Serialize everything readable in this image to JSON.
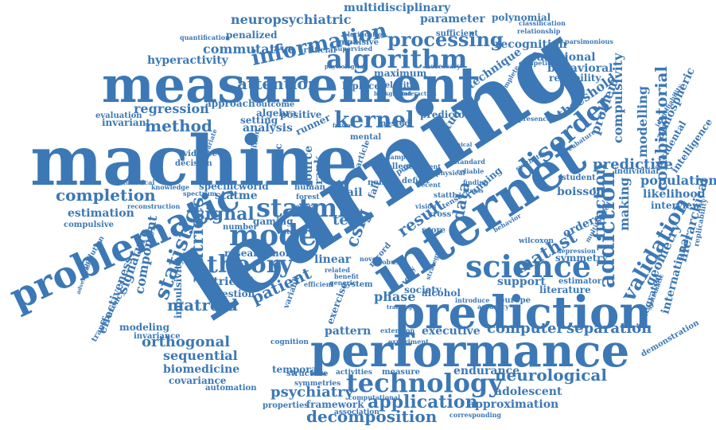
{
  "colors": {
    "text": "#3c78b5",
    "background": "#ffffff"
  },
  "words": {
    "w001": "learning",
    "w002": "machine",
    "w003": "measurement",
    "w004": "internet",
    "w005": "performance",
    "w006": "prediction",
    "w007": "problematic",
    "w008": "science",
    "w009": "algorithm",
    "w010": "model",
    "w011": "technology",
    "w012": "disorder",
    "w013": "addiction",
    "w014": "theory",
    "w015": "information",
    "w016": "statml",
    "w017": "kernel",
    "w018": "processing",
    "w019": "validation",
    "w020": "decomposition",
    "w021": "application",
    "w022": "mathst",
    "w023": "statistic",
    "w024": "matrices",
    "w025": "signal",
    "w026": "method",
    "w027": "completion",
    "w028": "neurological",
    "w029": "psychiatry",
    "w030": "computer",
    "w031": "separation",
    "w032": "combinatorial",
    "w033": "function",
    "w034": "patient",
    "w035": "neuropsychiatric",
    "w036": "multidisciplinary",
    "w037": "attention",
    "w038": "commutative",
    "w039": "hyperactivity",
    "w040": "regression",
    "w041": "estimation",
    "w042": "component",
    "w043": "signature",
    "w044": "matroid",
    "w045": "orthogonal",
    "w046": "sequential",
    "w047": "biomedicine",
    "w048": "covariance",
    "w049": "effectiveness",
    "w050": "predictive",
    "w051": "population",
    "w052": "likelihood",
    "w053": "hierarchical",
    "w054": "international",
    "w055": "geometry",
    "w056": "problem",
    "w057": "compulsivity",
    "w058": "threshold",
    "w059": "technique",
    "w060": "recognition",
    "w061": "parameter",
    "w062": "polynomial",
    "w063": "functional",
    "w064": "behavioral",
    "w065": "reliability",
    "w066": "executive",
    "w067": "pattern",
    "w068": "phase",
    "w069": "endurance",
    "w070": "adolescent",
    "w071": "approximation",
    "w072": "framework",
    "w073": "result",
    "w074": "data",
    "w075": "csig",
    "w076": "study",
    "w077": "modelling",
    "w078": "making",
    "w079": "ordered",
    "w080": "boisson",
    "w081": "support",
    "w082": "literature",
    "w083": "integrated",
    "w084": "atmospheric",
    "w085": "accidental",
    "w086": "intelligence",
    "w087": "interview",
    "w088": "demonstration",
    "w089": "estimator",
    "w090": "symmetry",
    "w091": "temporal",
    "w092": "measure",
    "w093": "activities",
    "w094": "society",
    "w095": "exercise",
    "w096": "alcohol",
    "w097": "linear",
    "w098": "test",
    "w099": "rank",
    "w100": "source",
    "w101": "statme",
    "w102": "specific",
    "w103": "world",
    "w104": "gaming",
    "w105": "number",
    "w106": "research",
    "w107": "moment",
    "w108": "retrieval",
    "w109": "question",
    "w110": "setting",
    "w111": "analysis",
    "w112": "algebra",
    "w113": "outcome",
    "w114": "approach",
    "w115": "invariant",
    "w116": "evaluation",
    "w117": "positive",
    "w118": "laplace",
    "w119": "velocity",
    "w120": "predictor",
    "w121": "nested",
    "w122": "runner",
    "w123": "evidence",
    "w124": "decision",
    "w125": "athletic",
    "w126": "compulsive",
    "w127": "statistical",
    "w128": "transparency",
    "w129": "impulsivity",
    "w130": "modeling",
    "w131": "invariance",
    "w132": "automation",
    "w133": "properties",
    "w134": "symmetries",
    "w135": "structure",
    "w136": "association",
    "w137": "maximum",
    "w138": "necessary",
    "w139": "sufficient",
    "w140": "classification",
    "w141": "penalized",
    "w142": "quantification",
    "w143": "impulsive",
    "w144": "clarification",
    "w145": "artificial",
    "w146": "supervised",
    "w147": "relationship",
    "w148": "parsimonious",
    "w149": "competition",
    "w150": "cubature",
    "w151": "presence",
    "w152": "individual",
    "w153": "identifiability",
    "w154": "replicability",
    "w155": "pollution",
    "w156": "running",
    "w157": "fall",
    "w158": "trail",
    "w159": "human",
    "w160": "college",
    "w161": "deficit",
    "w162": "recent",
    "w163": "standard",
    "w164": "reliable",
    "w165": "student",
    "w166": "cross",
    "w167": "score",
    "w168": "record",
    "w169": "novel",
    "w170": "robust",
    "w171": "mental",
    "w172": "europe",
    "w173": "wilcoxon",
    "w174": "statth",
    "w175": "statap",
    "w176": "power",
    "w177": "noise",
    "w178": "particle",
    "w179": "cognition",
    "w180": "system",
    "w181": "variable",
    "w182": "terry",
    "w183": "efficient",
    "w184": "related",
    "w185": "benefit",
    "w186": "generic",
    "w187": "extension",
    "w188": "introduce",
    "w189": "accuracy",
    "w190": "physical",
    "w191": "sample",
    "w192": "present",
    "w193": "finding",
    "w194": "vision",
    "w195": "tensor",
    "w196": "forest",
    "w197": "general",
    "w198": "spectrum",
    "w199": "knowledge",
    "w200": "reconstruction",
    "w201": "condition",
    "w202": "multivariate",
    "w203": "experiment",
    "w204": "strategy",
    "w205": "computational",
    "w206": "corresponding",
    "w207": "behavior",
    "w208": "systematic",
    "w209": "depression",
    "w210": "multifaceted",
    "w211": "complete",
    "w212": "physiological",
    "w213": "background",
    "w214": "interaction",
    "w215": "advertising",
    "w216": "chemical",
    "w217": "synthetic",
    "w218": "fitness",
    "w219": "training",
    "w220": "future"
  }
}
